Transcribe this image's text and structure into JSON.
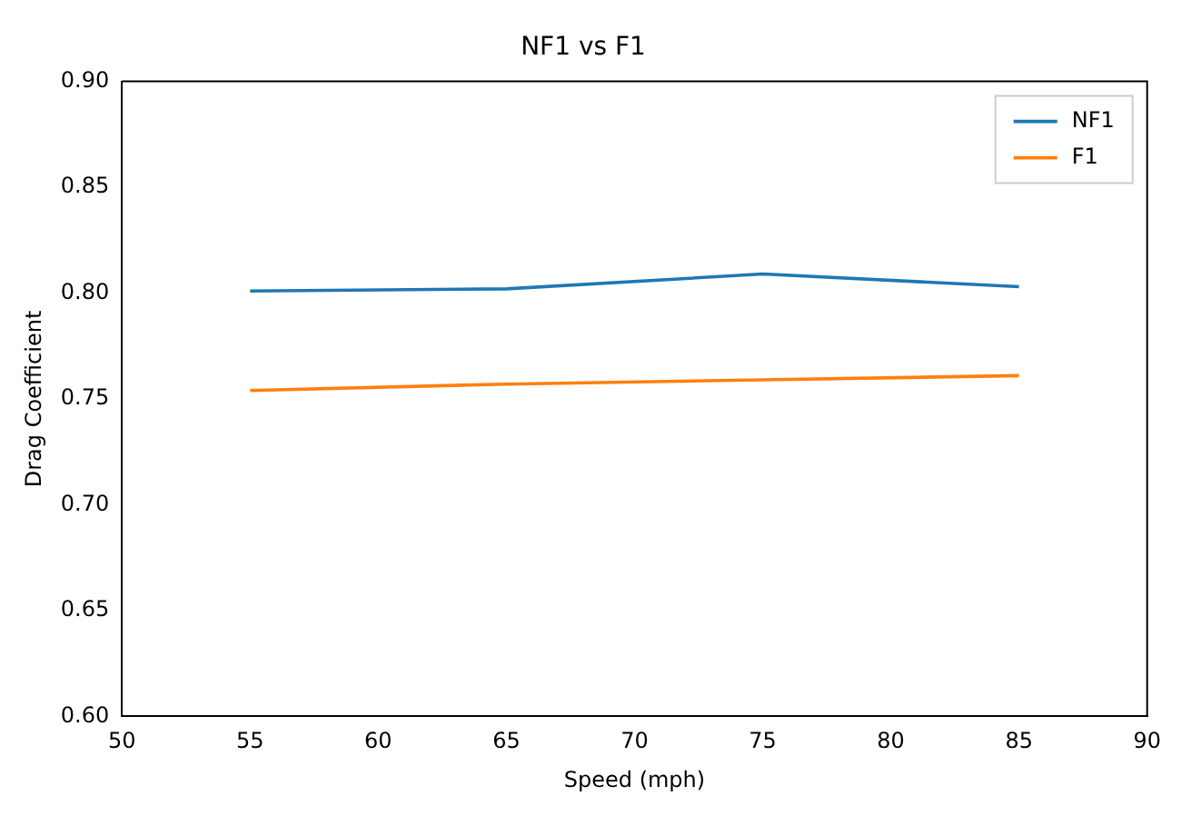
{
  "chart_data": {
    "type": "line",
    "title": "NF1 vs F1",
    "xlabel": "Speed (mph)",
    "ylabel": "Drag Coefficient",
    "x": [
      55,
      65,
      75,
      85
    ],
    "series": [
      {
        "name": "NF1",
        "color": "#1f77b4",
        "values": [
          0.801,
          0.802,
          0.809,
          0.803
        ]
      },
      {
        "name": "F1",
        "color": "#ff7f0e",
        "values": [
          0.754,
          0.757,
          0.759,
          0.761
        ]
      }
    ],
    "xlim": [
      50,
      90
    ],
    "xticks": [
      50,
      55,
      60,
      65,
      70,
      75,
      80,
      85,
      90
    ],
    "ylim": [
      0.6,
      0.9
    ],
    "yticks": [
      {
        "value": 0.6,
        "label": "0.60"
      },
      0.65,
      {
        "value": 0.7,
        "label": "0.70"
      },
      0.75,
      {
        "value": 0.8,
        "label": "0.80"
      },
      0.85,
      {
        "value": 0.9,
        "label": "0.90"
      }
    ],
    "grid": false,
    "legend": "top right",
    "marker": "none",
    "line_style": "solid"
  }
}
